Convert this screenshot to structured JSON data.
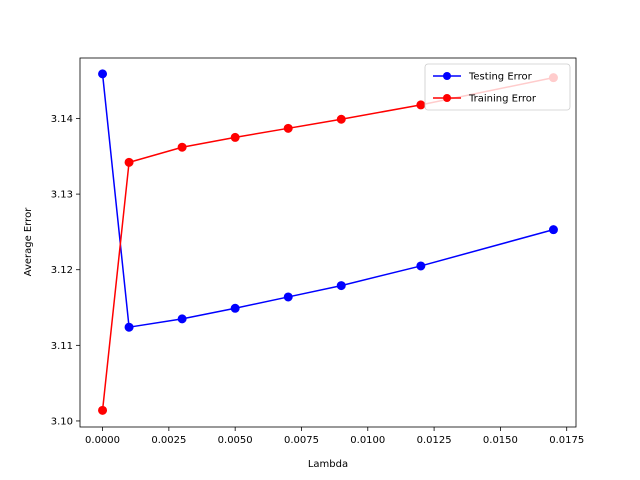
{
  "chart_data": {
    "type": "line",
    "title": "",
    "xlabel": "Lambda",
    "ylabel": "Average Error",
    "xlim": [
      -0.00085,
      0.01785
    ],
    "ylim": [
      3.0992,
      3.148
    ],
    "xticks": [
      0.0,
      0.0025,
      0.005,
      0.0075,
      0.01,
      0.0125,
      0.015,
      0.0175
    ],
    "xtick_labels": [
      "0.0000",
      "0.0025",
      "0.0050",
      "0.0075",
      "0.0100",
      "0.0125",
      "0.0150",
      "0.0175"
    ],
    "yticks": [
      3.1,
      3.11,
      3.12,
      3.13,
      3.14
    ],
    "ytick_labels": [
      "3.10",
      "3.11",
      "3.12",
      "3.13",
      "3.14"
    ],
    "grid": false,
    "legend_position": "top-right",
    "series": [
      {
        "name": "Testing Error",
        "color": "#0000ff",
        "marker": "circle",
        "x": [
          0.0,
          0.001,
          0.003,
          0.005,
          0.007,
          0.009,
          0.012,
          0.017
        ],
        "y": [
          3.1459,
          3.1124,
          3.1135,
          3.1149,
          3.1164,
          3.1179,
          3.1205,
          3.1253
        ]
      },
      {
        "name": "Training Error",
        "color": "#ff0000",
        "marker": "circle",
        "x": [
          0.0,
          0.001,
          0.003,
          0.005,
          0.007,
          0.009,
          0.012,
          0.017
        ],
        "y": [
          3.1014,
          3.1342,
          3.1362,
          3.1375,
          3.1387,
          3.1399,
          3.1418,
          3.1454
        ]
      }
    ]
  }
}
